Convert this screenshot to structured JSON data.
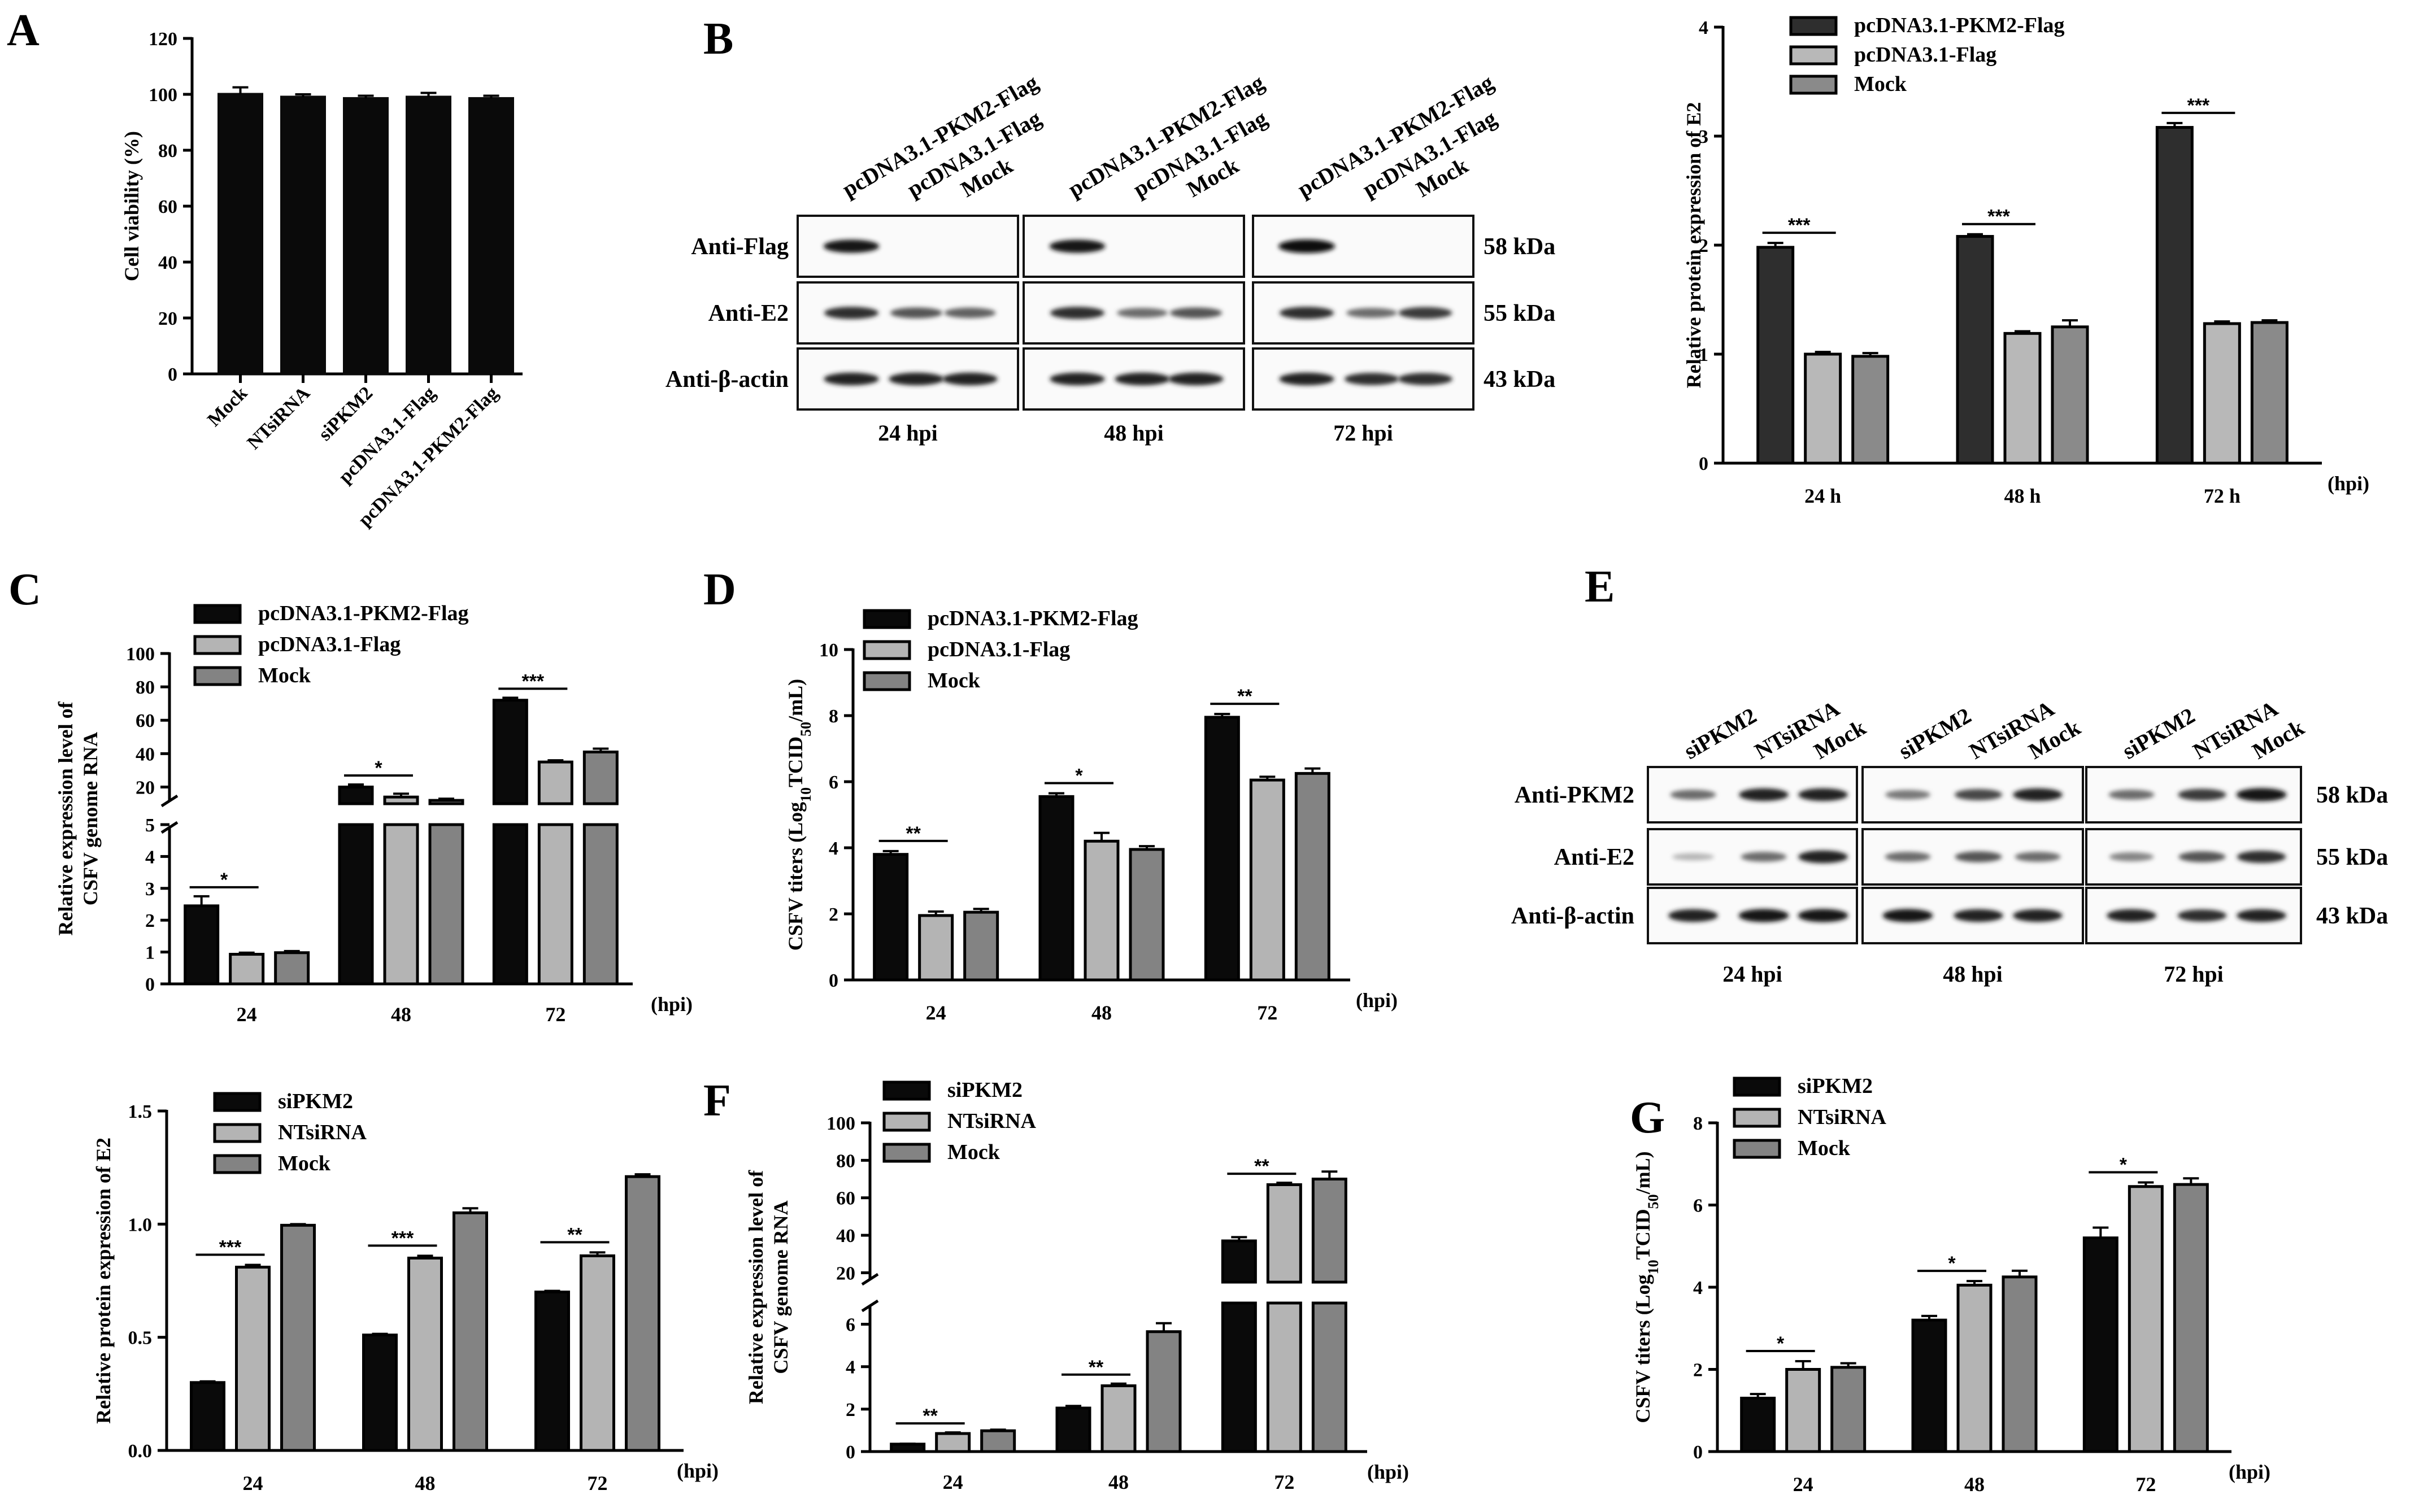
{
  "panel_labels": {
    "A": "A",
    "B": "B",
    "C": "C",
    "D": "D",
    "E": "E",
    "F": "F",
    "G": "G"
  },
  "colors": {
    "black": "#0a0a0a",
    "light_gray": "#b4b4b4",
    "mid_gray": "#838383",
    "dark_gray": "#2e2e2e",
    "light_gray_b": "#b8b8b8",
    "mid_gray_b": "#8a8a8a"
  },
  "chart_data": [
    {
      "id": "A",
      "type": "bar",
      "categories": [
        "Mock",
        "NTsiRNA",
        "siPKM2",
        "pcDNA3.1-Flag",
        "pcDNA3.1-PKM2-Flag"
      ],
      "values": [
        100,
        99,
        98.5,
        99,
        98.5
      ],
      "errors": [
        2.5,
        1,
        1,
        1.5,
        1
      ],
      "ylabel": "Cell viability (%)",
      "ylim": [
        0,
        120
      ],
      "yticks": [
        "0",
        "20",
        "40",
        "60",
        "80",
        "100",
        "120"
      ]
    },
    {
      "id": "B",
      "type": "bar",
      "categories": [
        "24 h",
        "48 h",
        "72 h"
      ],
      "xunit": "(hpi)",
      "ylabel": "Relative protein expression of E2",
      "ylim": [
        0,
        4
      ],
      "yticks": [
        "0",
        "1",
        "2",
        "3",
        "4"
      ],
      "series": [
        {
          "name": "pcDNA3.1-PKM2-Flag",
          "values": [
            1.98,
            2.08,
            3.08
          ],
          "errors": [
            0.04,
            0.02,
            0.04
          ]
        },
        {
          "name": "pcDNA3.1-Flag",
          "values": [
            1.0,
            1.19,
            1.28
          ],
          "errors": [
            0.02,
            0.02,
            0.02
          ]
        },
        {
          "name": "Mock",
          "values": [
            0.98,
            1.25,
            1.29
          ],
          "errors": [
            0.03,
            0.06,
            0.02
          ]
        }
      ],
      "significance": [
        "***",
        "***",
        "***"
      ]
    },
    {
      "id": "C",
      "type": "bar",
      "categories": [
        "24",
        "48",
        "72"
      ],
      "xunit": "(hpi)",
      "ylabel_lines": [
        "Relative expression level of",
        "CSFV genome RNA"
      ],
      "ylim": [
        0,
        100
      ],
      "axis_break": [
        5,
        10
      ],
      "yticks_lower": [
        "0",
        "1",
        "2",
        "3",
        "4",
        "5"
      ],
      "yticks_upper": [
        "20",
        "40",
        "60",
        "80",
        "100"
      ],
      "series": [
        {
          "name": "pcDNA3.1-PKM2-Flag",
          "values": [
            2.45,
            20,
            72
          ],
          "errors": [
            0.3,
            1.5,
            1.5
          ]
        },
        {
          "name": "pcDNA3.1-Flag",
          "values": [
            0.93,
            14,
            35
          ],
          "errors": [
            0.05,
            2,
            1
          ]
        },
        {
          "name": "Mock",
          "values": [
            0.98,
            12,
            41
          ],
          "errors": [
            0.05,
            1,
            2
          ]
        }
      ],
      "significance": [
        "*",
        "*",
        "***"
      ]
    },
    {
      "id": "D",
      "type": "bar",
      "categories": [
        "24",
        "48",
        "72"
      ],
      "xunit": "(hpi)",
      "ylabel_pre": "CSFV titers (Log",
      "ylabel_sub1": "10",
      "ylabel_mid": "TCID",
      "ylabel_sub2": "50",
      "ylabel_post": "/mL)",
      "ylim": [
        0,
        10
      ],
      "yticks": [
        "0",
        "2",
        "4",
        "6",
        "8",
        "10"
      ],
      "series": [
        {
          "name": "pcDNA3.1-PKM2-Flag",
          "values": [
            3.8,
            5.55,
            7.95
          ],
          "errors": [
            0.1,
            0.1,
            0.1
          ]
        },
        {
          "name": "pcDNA3.1-Flag",
          "values": [
            1.95,
            4.2,
            6.05
          ],
          "errors": [
            0.12,
            0.25,
            0.1
          ]
        },
        {
          "name": "Mock",
          "values": [
            2.05,
            3.95,
            6.25
          ],
          "errors": [
            0.1,
            0.1,
            0.15
          ]
        }
      ],
      "significance": [
        "**",
        "*",
        "**"
      ]
    },
    {
      "id": "E-quant",
      "type": "bar",
      "categories": [
        "24",
        "48",
        "72"
      ],
      "xunit": "(hpi)",
      "ylabel": "Relative protein expression of E2",
      "ylim": [
        0,
        1.5
      ],
      "yticks": [
        "0.0",
        "0.5",
        "1.0",
        "1.5"
      ],
      "series": [
        {
          "name": "siPKM2",
          "values": [
            0.3,
            0.51,
            0.7
          ],
          "errors": [
            0.005,
            0.005,
            0.005
          ]
        },
        {
          "name": "NTsiRNA",
          "values": [
            0.81,
            0.85,
            0.86
          ],
          "errors": [
            0.01,
            0.01,
            0.015
          ]
        },
        {
          "name": "Mock",
          "values": [
            0.995,
            1.05,
            1.21
          ],
          "errors": [
            0.005,
            0.02,
            0.01
          ]
        }
      ],
      "significance": [
        "***",
        "***",
        "**"
      ]
    },
    {
      "id": "F",
      "type": "bar",
      "categories": [
        "24",
        "48",
        "72"
      ],
      "xunit": "(hpi)",
      "ylabel_lines": [
        "Relative expression level of",
        "CSFV genome RNA"
      ],
      "ylim": [
        0,
        100
      ],
      "axis_break": [
        7,
        15
      ],
      "yticks_lower": [
        "0",
        "2",
        "4",
        "6"
      ],
      "yticks_upper": [
        "20",
        "40",
        "60",
        "80",
        "100"
      ],
      "series": [
        {
          "name": "siPKM2",
          "values": [
            0.35,
            2.05,
            37
          ],
          "errors": [
            0.02,
            0.1,
            2
          ]
        },
        {
          "name": "NTsiRNA",
          "values": [
            0.85,
            3.1,
            67
          ],
          "errors": [
            0.05,
            0.1,
            1
          ]
        },
        {
          "name": "Mock",
          "values": [
            0.98,
            5.65,
            70
          ],
          "errors": [
            0.05,
            0.4,
            4
          ]
        }
      ],
      "significance": [
        "**",
        "**",
        "**"
      ]
    },
    {
      "id": "G",
      "type": "bar",
      "categories": [
        "24",
        "48",
        "72"
      ],
      "xunit": "(hpi)",
      "ylabel_pre": "CSFV titers (Log",
      "ylabel_sub1": "10",
      "ylabel_mid": "TCID",
      "ylabel_sub2": "50",
      "ylabel_post": "/mL)",
      "ylim": [
        0,
        8
      ],
      "yticks": [
        "0",
        "2",
        "4",
        "6",
        "8"
      ],
      "series": [
        {
          "name": "siPKM2",
          "values": [
            1.3,
            3.2,
            5.2
          ],
          "errors": [
            0.1,
            0.1,
            0.25
          ]
        },
        {
          "name": "NTsiRNA",
          "values": [
            2.0,
            4.05,
            6.45
          ],
          "errors": [
            0.2,
            0.1,
            0.1
          ]
        },
        {
          "name": "Mock",
          "values": [
            2.05,
            4.25,
            6.5
          ],
          "errors": [
            0.1,
            0.15,
            0.15
          ]
        }
      ],
      "significance": [
        "*",
        "*",
        "*"
      ]
    }
  ],
  "blots": {
    "B": {
      "lane_labels": [
        "pcDNA3.1-PKM2-Flag",
        "pcDNA3.1-Flag",
        "Mock"
      ],
      "row_labels": [
        "Anti-Flag",
        "Anti-E2",
        "Anti-β-actin"
      ],
      "sizes": [
        "58 kDa",
        "55 kDa",
        "43 kDa"
      ],
      "timepoints": [
        "24 hpi",
        "48 hpi",
        "72 hpi"
      ],
      "band_intensity": [
        [
          [
            0.95,
            0,
            0
          ],
          [
            0.85,
            0.7,
            0.65
          ],
          [
            0.9,
            0.9,
            0.9
          ]
        ],
        [
          [
            0.95,
            0,
            0
          ],
          [
            0.85,
            0.6,
            0.7
          ],
          [
            0.9,
            0.9,
            0.9
          ]
        ],
        [
          [
            1.0,
            0,
            0
          ],
          [
            0.85,
            0.6,
            0.8
          ],
          [
            0.9,
            0.85,
            0.85
          ]
        ]
      ]
    },
    "E": {
      "lane_labels": [
        "siPKM2",
        "NTsiRNA",
        "Mock"
      ],
      "row_labels": [
        "Anti-PKM2",
        "Anti-E2",
        "Anti-β-actin"
      ],
      "sizes": [
        "58 kDa",
        "55 kDa",
        "43 kDa"
      ],
      "timepoints": [
        "24 hpi",
        "48 hpi",
        "72 hpi"
      ],
      "band_intensity": [
        [
          [
            0.6,
            0.9,
            0.9
          ],
          [
            0.3,
            0.6,
            0.9
          ],
          [
            0.9,
            0.95,
            0.95
          ]
        ],
        [
          [
            0.55,
            0.75,
            0.9
          ],
          [
            0.6,
            0.7,
            0.6
          ],
          [
            0.95,
            0.9,
            0.9
          ]
        ],
        [
          [
            0.6,
            0.8,
            0.95
          ],
          [
            0.5,
            0.7,
            0.85
          ],
          [
            0.9,
            0.85,
            0.9
          ]
        ]
      ]
    }
  }
}
